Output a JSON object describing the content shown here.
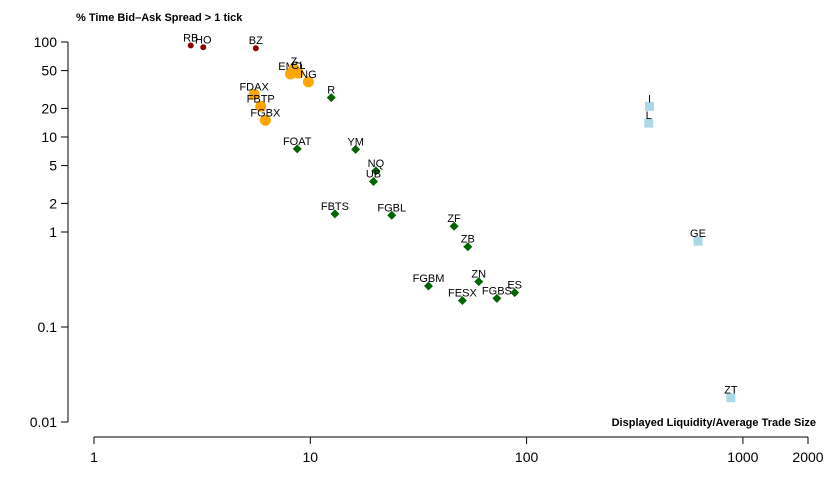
{
  "chart_data": {
    "type": "scatter",
    "title": "",
    "ylabel": "% Time Bid–Ask Spread > 1 tick",
    "xlabel": "Displayed Liquidity/Average Trade Size",
    "x_scale": "log",
    "y_scale": "log",
    "xlim": [
      1,
      2000
    ],
    "ylim": [
      0.01,
      100
    ],
    "x_ticks": [
      1,
      10,
      100,
      1000,
      2000
    ],
    "x_tick_labels": [
      "1",
      "10",
      "100",
      "1000",
      "2000"
    ],
    "y_ticks": [
      0.01,
      0.1,
      1,
      2,
      5,
      10,
      20,
      50,
      100
    ],
    "y_tick_labels": [
      "0.01",
      "0.1",
      "1",
      "2",
      "5",
      "10",
      "20",
      "50",
      "100"
    ],
    "grid": false,
    "legend": "none",
    "series": [
      {
        "color": "#8B0000",
        "marker": "circle-small",
        "points": [
          {
            "label": "RB",
            "x": 2.8,
            "y": 92
          },
          {
            "label": "HO",
            "x": 3.2,
            "y": 88
          },
          {
            "label": "BZ",
            "x": 5.6,
            "y": 86
          }
        ]
      },
      {
        "color": "#FFA500",
        "marker": "circle",
        "points": [
          {
            "label": "FDAX",
            "x": 5.5,
            "y": 28
          },
          {
            "label": "FBTP",
            "x": 5.9,
            "y": 21
          },
          {
            "label": "FGBX",
            "x": 6.2,
            "y": 15
          },
          {
            "label": "EMD",
            "x": 8.1,
            "y": 46
          },
          {
            "label": "Z",
            "x": 8.4,
            "y": 52
          },
          {
            "label": "CL",
            "x": 8.8,
            "y": 47
          },
          {
            "label": "NG",
            "x": 9.8,
            "y": 38
          }
        ]
      },
      {
        "color": "#006400",
        "marker": "diamond",
        "points": [
          {
            "label": "R",
            "x": 12.5,
            "y": 26
          },
          {
            "label": "FOAT",
            "x": 8.7,
            "y": 7.5
          },
          {
            "label": "YM",
            "x": 16.2,
            "y": 7.4
          },
          {
            "label": "NQ",
            "x": 20.1,
            "y": 4.4
          },
          {
            "label": "UB",
            "x": 19.6,
            "y": 3.4
          },
          {
            "label": "FBTS",
            "x": 13.0,
            "y": 1.55
          },
          {
            "label": "FGBL",
            "x": 23.8,
            "y": 1.5
          },
          {
            "label": "ZF",
            "x": 46.2,
            "y": 1.15
          },
          {
            "label": "ZB",
            "x": 53.5,
            "y": 0.7
          },
          {
            "label": "FGBM",
            "x": 35.2,
            "y": 0.27
          },
          {
            "label": "ZN",
            "x": 60.1,
            "y": 0.3
          },
          {
            "label": "FESX",
            "x": 50.5,
            "y": 0.19
          },
          {
            "label": "FGBS",
            "x": 72.9,
            "y": 0.2
          },
          {
            "label": "ES",
            "x": 88.1,
            "y": 0.23
          }
        ]
      },
      {
        "color": "#ADD8E6",
        "marker": "square",
        "points": [
          {
            "label": "I",
            "x": 370,
            "y": 21
          },
          {
            "label": "L",
            "x": 367,
            "y": 14
          },
          {
            "label": "GE",
            "x": 620,
            "y": 0.8
          },
          {
            "label": "ZT",
            "x": 880,
            "y": 0.018
          }
        ]
      }
    ]
  }
}
